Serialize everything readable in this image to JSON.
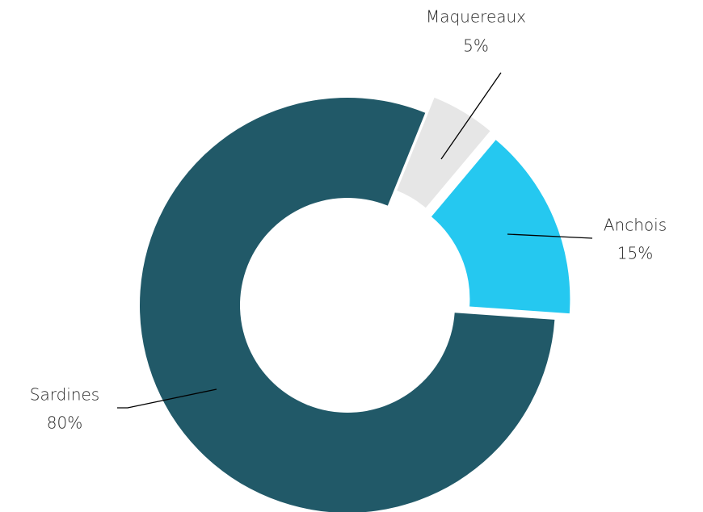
{
  "chart_data": {
    "type": "donut",
    "categories": [
      "Maquereaux",
      "Anchois",
      "Sardines"
    ],
    "values": [
      5,
      15,
      80
    ],
    "value_labels": [
      "5%",
      "15%",
      "80%"
    ],
    "colors": [
      "#e6e6e6",
      "#25c8f0",
      "#215968"
    ]
  }
}
